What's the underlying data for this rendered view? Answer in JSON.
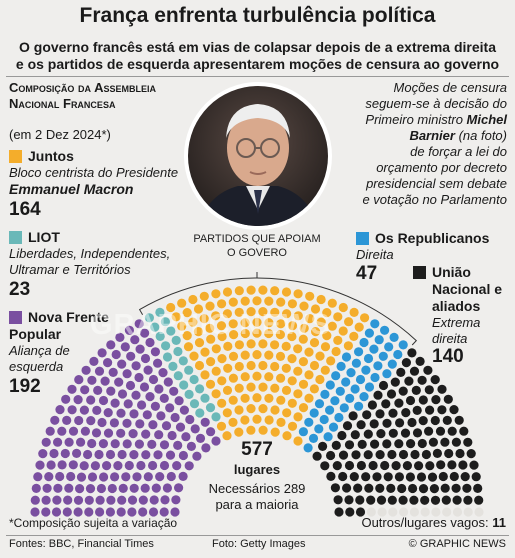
{
  "title": "França enfrenta turbulência política",
  "subtitle_line1": "O governo francês está em vias de colapsar depois de a extrema direita",
  "subtitle_line2": "e os partidos de esquerda apresentarem moções de censura ao governo",
  "composition_heading": "Composição da Assembleia Nacional Francesa",
  "composition_date": "(em 2 Dez 2024*)",
  "note": {
    "line1": "Moções de censura",
    "line2": "seguem-se à decisão do",
    "line3_pre": "Primeiro ministro ",
    "line3_name": "Michel",
    "line4_name": "Barnier",
    "line4_post": " (na foto)",
    "line5": "de forçar a lei do",
    "line6": "orçamento por decreto",
    "line7": "presidencial sem debate",
    "line8": "e votação no Parlamento"
  },
  "government_label_line1": "PARTIDOS QUE APOIAM",
  "government_label_line2": "O GOVERO",
  "parties": {
    "juntos": {
      "name": "Juntos",
      "desc1": "Bloco centrista do Presidente",
      "desc2": "Emmanuel Macron",
      "seats": "164",
      "color": "#f4ad2b"
    },
    "liot": {
      "name": "LIOT",
      "desc1": "Liberdades, Independentes,",
      "desc2": "Ultramar e Territórios",
      "seats": "23",
      "color": "#6ab8b8"
    },
    "nfp": {
      "name1": "Nova Frente",
      "name2": "Popular",
      "desc1": "Aliança de",
      "desc2": "esquerda",
      "seats": "192",
      "color": "#7a4fa0"
    },
    "lr": {
      "name": "Os Republicanos",
      "desc": "Direita",
      "seats": "47",
      "color": "#2c96d6"
    },
    "rn": {
      "name1": "União",
      "name2": "Nacional e",
      "name3": "aliados",
      "desc1": "Extrema",
      "desc2": "direita",
      "seats": "140",
      "color": "#1d1d1d"
    }
  },
  "center": {
    "total": "577",
    "label": "lugares",
    "majority_line1": "Necessários 289",
    "majority_line2": "para a maioria"
  },
  "footnote": "*Composição sujeita a variação",
  "others": {
    "label": "Outros/lugares vagos: ",
    "value": "11",
    "color": "#e4e2de"
  },
  "footer": {
    "sources": "Fontes: BBC, Financial Times",
    "photo": "Foto: Getty Images",
    "copyright": "© GRAPHIC NEWS"
  },
  "watermark": "GRAPHIC NEWS",
  "chart_data": {
    "type": "parliament",
    "total_seats": 577,
    "majority": 289,
    "series": [
      {
        "name": "Nova Frente Popular",
        "value": 192,
        "color": "#7a4fa0"
      },
      {
        "name": "LIOT",
        "value": 23,
        "color": "#6ab8b8"
      },
      {
        "name": "Juntos",
        "value": 164,
        "color": "#f4ad2b"
      },
      {
        "name": "Os Republicanos",
        "value": 47,
        "color": "#2c96d6"
      },
      {
        "name": "União Nacional e aliados",
        "value": 140,
        "color": "#1d1d1d"
      },
      {
        "name": "Outros/lugares vagos",
        "value": 11,
        "color": "#e4e2de"
      }
    ]
  }
}
